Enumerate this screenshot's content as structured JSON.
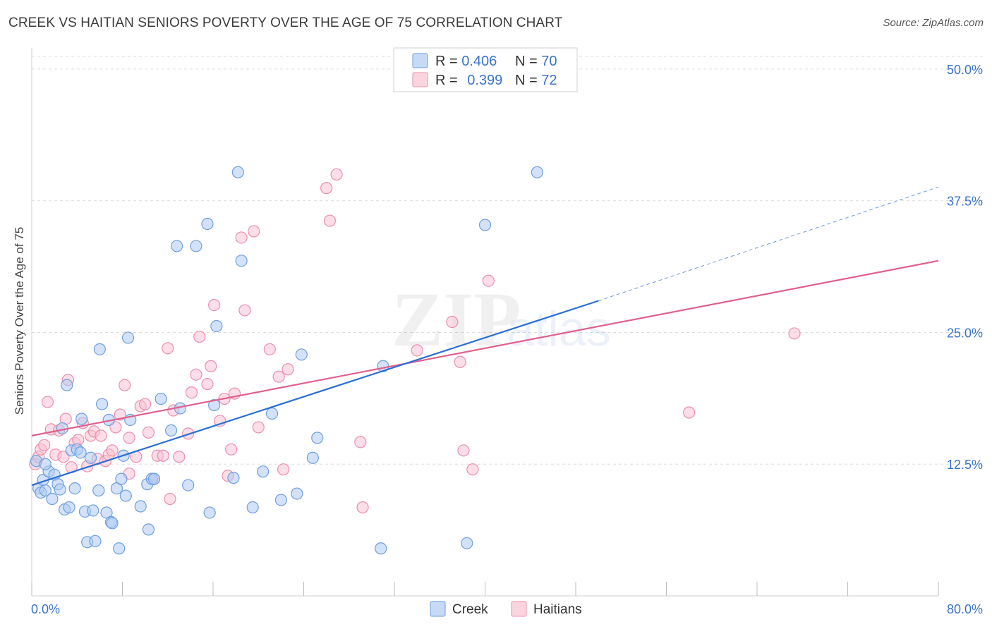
{
  "header": {
    "title": "CREEK VS HAITIAN SENIORS POVERTY OVER THE AGE OF 75 CORRELATION CHART",
    "source": "Source: ZipAtlas.com"
  },
  "watermark": {
    "zip": "ZIP",
    "atlas": "atlas"
  },
  "legend": {
    "rows": [
      {
        "r_label": "R = ",
        "r_value": "0.406",
        "n_label": "N = ",
        "n_value": "70"
      },
      {
        "r_label": "R = ",
        "r_value": "0.399",
        "n_label": "N = ",
        "n_value": "72"
      }
    ]
  },
  "chart_data": {
    "type": "scatter",
    "title": "CREEK VS HAITIAN SENIORS POVERTY OVER THE AGE OF 75 CORRELATION CHART",
    "xlabel": "",
    "ylabel": "Seniors Poverty Over the Age of 75",
    "xlim": [
      0,
      80
    ],
    "ylim": [
      0,
      52
    ],
    "x_tick_labels": [
      "0.0%",
      "80.0%"
    ],
    "y_ticks": [
      12.5,
      25.0,
      37.5,
      50.0
    ],
    "y_tick_labels": [
      "12.5%",
      "25.0%",
      "37.5%",
      "50.0%"
    ],
    "grid": true,
    "legend_position": "top-center",
    "colors": {
      "creek_fill": "#aecbf2",
      "creek_stroke": "#6e9fe0",
      "creek_line": "#2b6fd4",
      "haitians_fill": "#f8c3d3",
      "haitians_stroke": "#ec8fab",
      "haitians_line": "#e0608d",
      "accent_text": "#3a74c9"
    },
    "series": [
      {
        "name": "Creek",
        "trend": {
          "x0": 0,
          "y0": 10.5,
          "x1": 50,
          "y1": 28.0,
          "dash_to_x": 80,
          "dash_to_y": 38.8
        },
        "points": [
          [
            0.4,
            12.8
          ],
          [
            0.6,
            10.2
          ],
          [
            0.8,
            9.8
          ],
          [
            1.0,
            11.0
          ],
          [
            1.2,
            10.0
          ],
          [
            1.5,
            11.8
          ],
          [
            1.8,
            9.2
          ],
          [
            2.0,
            11.5
          ],
          [
            2.3,
            10.6
          ],
          [
            2.5,
            10.1
          ],
          [
            2.7,
            15.9
          ],
          [
            2.9,
            8.2
          ],
          [
            3.1,
            20.0
          ],
          [
            3.3,
            8.4
          ],
          [
            3.5,
            13.8
          ],
          [
            3.8,
            10.2
          ],
          [
            4.0,
            13.9
          ],
          [
            4.3,
            13.6
          ],
          [
            4.4,
            16.8
          ],
          [
            4.7,
            8.0
          ],
          [
            4.9,
            5.1
          ],
          [
            5.2,
            13.1
          ],
          [
            5.4,
            8.1
          ],
          [
            5.6,
            5.2
          ],
          [
            5.9,
            10.0
          ],
          [
            6.2,
            18.2
          ],
          [
            6.0,
            23.4
          ],
          [
            6.6,
            7.9
          ],
          [
            6.8,
            16.7
          ],
          [
            7.0,
            7.0
          ],
          [
            7.1,
            6.9
          ],
          [
            7.5,
            10.2
          ],
          [
            7.7,
            4.5
          ],
          [
            7.9,
            11.1
          ],
          [
            8.1,
            13.3
          ],
          [
            8.3,
            9.5
          ],
          [
            8.5,
            24.5
          ],
          [
            8.7,
            16.7
          ],
          [
            9.6,
            8.5
          ],
          [
            10.2,
            10.6
          ],
          [
            10.3,
            6.3
          ],
          [
            10.6,
            11.1
          ],
          [
            10.8,
            11.1
          ],
          [
            11.4,
            18.7
          ],
          [
            12.3,
            15.7
          ],
          [
            13.1,
            17.8
          ],
          [
            12.8,
            33.2
          ],
          [
            13.8,
            10.5
          ],
          [
            14.5,
            33.2
          ],
          [
            15.5,
            35.3
          ],
          [
            15.7,
            7.9
          ],
          [
            16.3,
            25.6
          ],
          [
            16.1,
            18.1
          ],
          [
            17.8,
            11.2
          ],
          [
            18.2,
            40.2
          ],
          [
            18.5,
            31.8
          ],
          [
            19.5,
            8.4
          ],
          [
            20.4,
            11.8
          ],
          [
            21.2,
            17.3
          ],
          [
            22.0,
            9.1
          ],
          [
            23.4,
            9.7
          ],
          [
            23.8,
            22.9
          ],
          [
            24.8,
            13.1
          ],
          [
            25.2,
            15.0
          ],
          [
            31.0,
            21.8
          ],
          [
            30.8,
            4.5
          ],
          [
            38.4,
            5.0
          ],
          [
            40.0,
            35.2
          ],
          [
            44.6,
            40.2
          ],
          [
            1.2,
            12.5
          ]
        ]
      },
      {
        "name": "Haitians",
        "trend": {
          "x0": 0,
          "y0": 15.2,
          "x1": 80,
          "y1": 31.8
        },
        "points": [
          [
            0.3,
            12.5
          ],
          [
            0.6,
            13.2
          ],
          [
            0.8,
            13.9
          ],
          [
            1.1,
            14.3
          ],
          [
            1.4,
            18.4
          ],
          [
            1.7,
            15.8
          ],
          [
            2.1,
            13.4
          ],
          [
            2.4,
            15.7
          ],
          [
            2.8,
            13.2
          ],
          [
            3.0,
            16.8
          ],
          [
            3.2,
            20.5
          ],
          [
            3.5,
            12.2
          ],
          [
            3.8,
            14.5
          ],
          [
            4.1,
            14.8
          ],
          [
            4.5,
            16.4
          ],
          [
            4.9,
            12.3
          ],
          [
            5.2,
            15.2
          ],
          [
            5.5,
            15.6
          ],
          [
            5.8,
            13.0
          ],
          [
            6.1,
            15.2
          ],
          [
            6.5,
            12.8
          ],
          [
            6.8,
            13.4
          ],
          [
            7.1,
            13.8
          ],
          [
            7.4,
            16.0
          ],
          [
            7.8,
            17.2
          ],
          [
            8.2,
            20.0
          ],
          [
            8.6,
            11.6
          ],
          [
            8.6,
            15.0
          ],
          [
            9.2,
            13.2
          ],
          [
            9.6,
            18.0
          ],
          [
            10.0,
            18.2
          ],
          [
            10.3,
            15.5
          ],
          [
            10.8,
            11.1
          ],
          [
            11.1,
            13.3
          ],
          [
            11.6,
            13.3
          ],
          [
            12.0,
            23.5
          ],
          [
            12.2,
            9.2
          ],
          [
            12.5,
            17.6
          ],
          [
            13.0,
            13.2
          ],
          [
            13.8,
            15.4
          ],
          [
            14.1,
            19.3
          ],
          [
            14.5,
            21.0
          ],
          [
            14.8,
            24.6
          ],
          [
            15.5,
            20.1
          ],
          [
            15.8,
            21.8
          ],
          [
            16.1,
            27.6
          ],
          [
            16.6,
            16.6
          ],
          [
            17.0,
            18.7
          ],
          [
            17.3,
            11.4
          ],
          [
            17.6,
            13.9
          ],
          [
            17.9,
            19.2
          ],
          [
            18.5,
            34.0
          ],
          [
            18.8,
            27.1
          ],
          [
            19.6,
            34.6
          ],
          [
            20.0,
            16.0
          ],
          [
            21.0,
            23.4
          ],
          [
            21.8,
            20.8
          ],
          [
            22.2,
            12.0
          ],
          [
            22.6,
            21.5
          ],
          [
            26.0,
            38.7
          ],
          [
            26.3,
            35.6
          ],
          [
            26.9,
            40.0
          ],
          [
            29.0,
            14.6
          ],
          [
            29.2,
            8.4
          ],
          [
            34.0,
            23.3
          ],
          [
            37.1,
            26.0
          ],
          [
            37.8,
            22.2
          ],
          [
            38.1,
            13.8
          ],
          [
            38.9,
            12.0
          ],
          [
            40.3,
            29.9
          ],
          [
            58.0,
            17.4
          ],
          [
            67.3,
            24.9
          ]
        ]
      }
    ]
  },
  "bottom_legend": {
    "items": [
      "Creek",
      "Haitians"
    ]
  }
}
